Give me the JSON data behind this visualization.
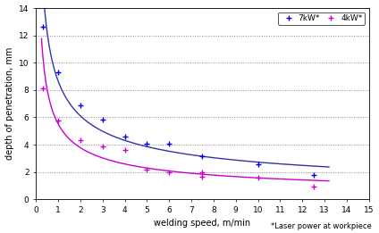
{
  "title": "",
  "xlabel": "welding speed, m/min",
  "ylabel": "depth of penetration, mm",
  "footnote": "*Laser power at workpiece",
  "xlim": [
    0,
    15
  ],
  "ylim": [
    0,
    14
  ],
  "xticks": [
    0,
    1,
    2,
    3,
    4,
    5,
    6,
    7,
    8,
    9,
    10,
    11,
    12,
    13,
    14,
    15
  ],
  "yticks": [
    0,
    2,
    4,
    6,
    8,
    10,
    12,
    14
  ],
  "blue_scatter_x": [
    0.3,
    1.0,
    2.0,
    3.0,
    4.0,
    5.0,
    6.0,
    7.5,
    10.0,
    12.5
  ],
  "blue_scatter_y": [
    12.6,
    9.3,
    6.9,
    5.85,
    4.6,
    4.1,
    4.05,
    3.15,
    2.55,
    1.75
  ],
  "pink_scatter_x": [
    0.3,
    1.0,
    2.0,
    3.0,
    4.0,
    5.0,
    6.0,
    7.5,
    7.5,
    10.0,
    12.5
  ],
  "pink_scatter_y": [
    8.1,
    5.8,
    4.35,
    3.9,
    3.6,
    2.15,
    2.0,
    1.95,
    1.65,
    1.6,
    0.95
  ],
  "blue_curve_color": "#3333aa",
  "pink_curve_color": "#cc00cc",
  "blue_scatter_color": "#0000dd",
  "pink_scatter_color": "#cc00cc",
  "legend_7kw": "7kW*",
  "legend_4kw": "4kW*",
  "bg_color": "#ffffff",
  "grid_color": "#888888"
}
